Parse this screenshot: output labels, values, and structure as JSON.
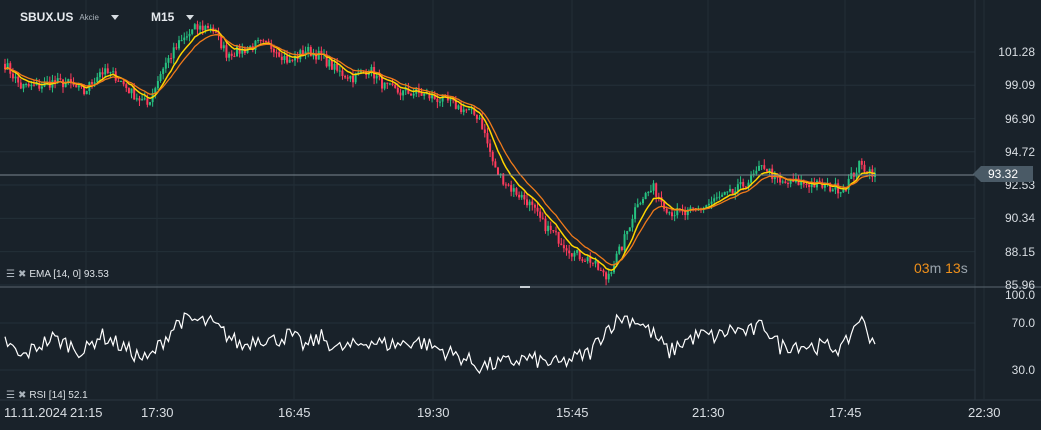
{
  "header": {
    "symbol": "SBUX.US",
    "asset_type": "Akcie",
    "timeframe": "M15"
  },
  "current_price": "93.32",
  "countdown": {
    "minutes": "03",
    "m": "m",
    "seconds": "13",
    "s": "s"
  },
  "indicators": {
    "ema": "EMA [14, 0] 93.53",
    "rsi": "RSI [14]  52.1"
  },
  "colors": {
    "background": "#19222a",
    "bull": "#26c281",
    "bear": "#ff3b5c",
    "ema_fast": "#ffd400",
    "ema_slow": "#f07a1a",
    "rsi": "#ffffff",
    "accent": "#f0901a"
  },
  "chart_data": [
    {
      "type": "candlestick",
      "title": "SBUX.US M15",
      "y_ticks": [
        "101.28",
        "99.09",
        "96.90",
        "94.72",
        "92.53",
        "90.34",
        "88.15",
        "85.96"
      ],
      "ylim": [
        85.8,
        104.2
      ],
      "x_ticks": [
        "11.11.2024",
        "21:15",
        "17:30",
        "16:45",
        "19:30",
        "15:45",
        "21:30",
        "17:45",
        "22:30"
      ],
      "close": [
        100.5,
        99,
        99,
        99.3,
        99.2,
        98.6,
        100,
        99.7,
        98.6,
        97.8,
        100.3,
        101.8,
        102.8,
        103,
        101.2,
        101.4,
        101.8,
        101.6,
        100.6,
        101.4,
        101,
        100,
        99.6,
        100.2,
        99,
        98.6,
        98.6,
        98.3,
        98,
        97.5,
        97,
        93.5,
        92.3,
        91.5,
        90,
        89,
        88,
        87.6,
        86.4,
        88.5,
        91.5,
        92.3,
        90.8,
        90.6,
        91,
        91.6,
        92,
        92.8,
        93.8,
        92.6,
        92.7,
        92.6,
        92.4,
        92.3,
        93.8,
        93.32
      ],
      "overlays": [
        "EMA [14, 0]"
      ]
    },
    {
      "type": "line",
      "title": "RSI [14]",
      "y_ticks": [
        "100.0",
        "70.0",
        "30.0"
      ],
      "ylim": [
        0,
        100
      ],
      "values": [
        55,
        40,
        50,
        57,
        52,
        45,
        60,
        53,
        45,
        38,
        55,
        72,
        72,
        70,
        60,
        50,
        58,
        55,
        60,
        50,
        58,
        48,
        50,
        55,
        52,
        52,
        55,
        50,
        45,
        40,
        33,
        35,
        37,
        40,
        37,
        35,
        40,
        45,
        65,
        75,
        72,
        60,
        45,
        55,
        60,
        58,
        65,
        62,
        68,
        50,
        52,
        50,
        50,
        48,
        75,
        52
      ]
    }
  ]
}
